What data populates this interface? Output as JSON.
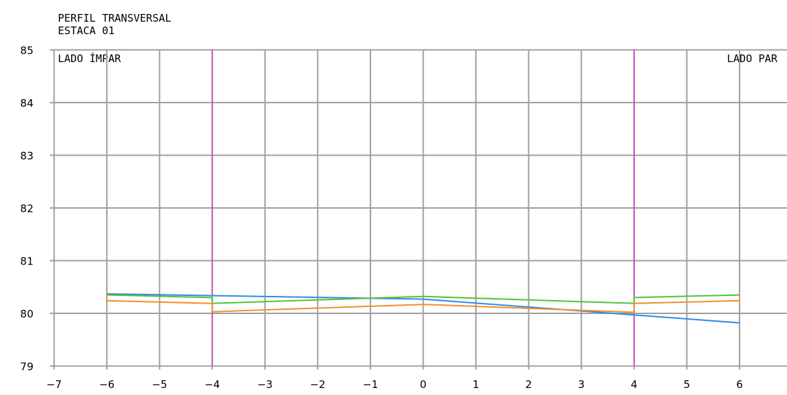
{
  "chart_data": {
    "type": "line",
    "title": "PERFIL TRANSVERSAL",
    "subtitle": "ESTACA 01",
    "left_label": "LADO ÍMPAR",
    "right_label": "LADO PAR",
    "xlim": [
      -7,
      6.9
    ],
    "ylim": [
      79,
      85
    ],
    "x_ticks": [
      "−7",
      "−5",
      "−4",
      "−3",
      "−2",
      "−1",
      "0",
      "1",
      "2",
      "3",
      "4",
      "5",
      "6"
    ],
    "x_ticks_values": [
      -7,
      -5,
      -4,
      -3,
      -2,
      -1,
      0,
      1,
      2,
      3,
      4,
      5,
      6
    ],
    "x_tick_minus_six": "−6",
    "y_ticks": [
      "79",
      "80",
      "81",
      "82",
      "83",
      "84",
      "85"
    ],
    "y_tick_values": [
      79,
      80,
      81,
      82,
      83,
      84,
      85
    ],
    "grid": true,
    "vertical_markers": [
      -4,
      4
    ],
    "marker_color": "#e000e0",
    "series": [
      {
        "color": "#2f8ce6",
        "points": [
          [
            -6,
            80.37
          ],
          [
            0,
            80.27
          ],
          [
            4,
            79.97
          ],
          [
            6,
            79.82
          ]
        ]
      },
      {
        "color": "#55c23a",
        "points": [
          [
            -6,
            80.35
          ],
          [
            -4,
            80.3
          ],
          [
            -4,
            80.19
          ],
          [
            0,
            80.32
          ],
          [
            4,
            80.19
          ],
          [
            4,
            80.3
          ],
          [
            6,
            80.35
          ]
        ]
      },
      {
        "color": "#f0902a",
        "points": [
          [
            -6,
            80.36
          ],
          [
            -6,
            80.24
          ],
          [
            -4,
            80.19
          ],
          [
            -4,
            80.03
          ],
          [
            0,
            80.17
          ],
          [
            4,
            80.02
          ],
          [
            4,
            80.19
          ],
          [
            6,
            80.24
          ],
          [
            6,
            80.3
          ]
        ]
      }
    ]
  }
}
